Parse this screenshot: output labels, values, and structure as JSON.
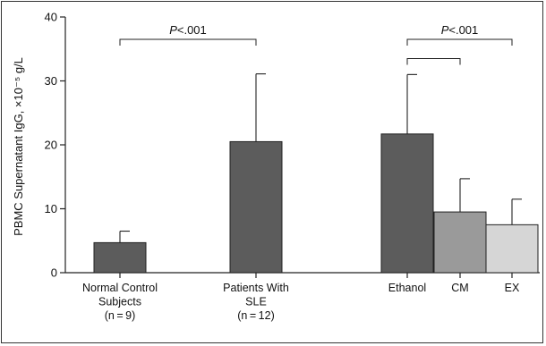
{
  "chart_data": {
    "type": "bar",
    "ylabel": "PBMC Supernatant IgG, ×10⁻⁵ g/L",
    "ylim": [
      0,
      40
    ],
    "yticks": [
      "0",
      "10",
      "20",
      "30",
      "40"
    ],
    "categories": [
      {
        "lines": [
          "Normal Control",
          "Subjects",
          "(n = 9)"
        ]
      },
      {
        "lines": [
          "Patients With",
          "SLE",
          "(n = 12)"
        ]
      },
      {
        "lines": [
          "Ethanol"
        ]
      },
      {
        "lines": [
          "CM"
        ]
      },
      {
        "lines": [
          "EX"
        ]
      }
    ],
    "values": [
      4.7,
      20.5,
      21.7,
      9.5,
      7.5
    ],
    "errors": [
      1.8,
      10.6,
      9.3,
      5.2,
      4.0
    ],
    "bar_colors": [
      "#5c5c5c",
      "#5c5c5c",
      "#5c5c5c",
      "#9a9a9a",
      "#d6d6d6"
    ],
    "annotations": [
      {
        "label_italic": "P",
        "label_rest": "<.001",
        "from": 0,
        "to": 1,
        "y": 36.5
      },
      {
        "label_italic": "P",
        "label_rest": "<.001",
        "from": 2,
        "to": 4,
        "y": 36.5
      },
      {
        "label_italic": "",
        "label_rest": "",
        "from": 2,
        "to": 3,
        "y": 33.5
      }
    ]
  }
}
